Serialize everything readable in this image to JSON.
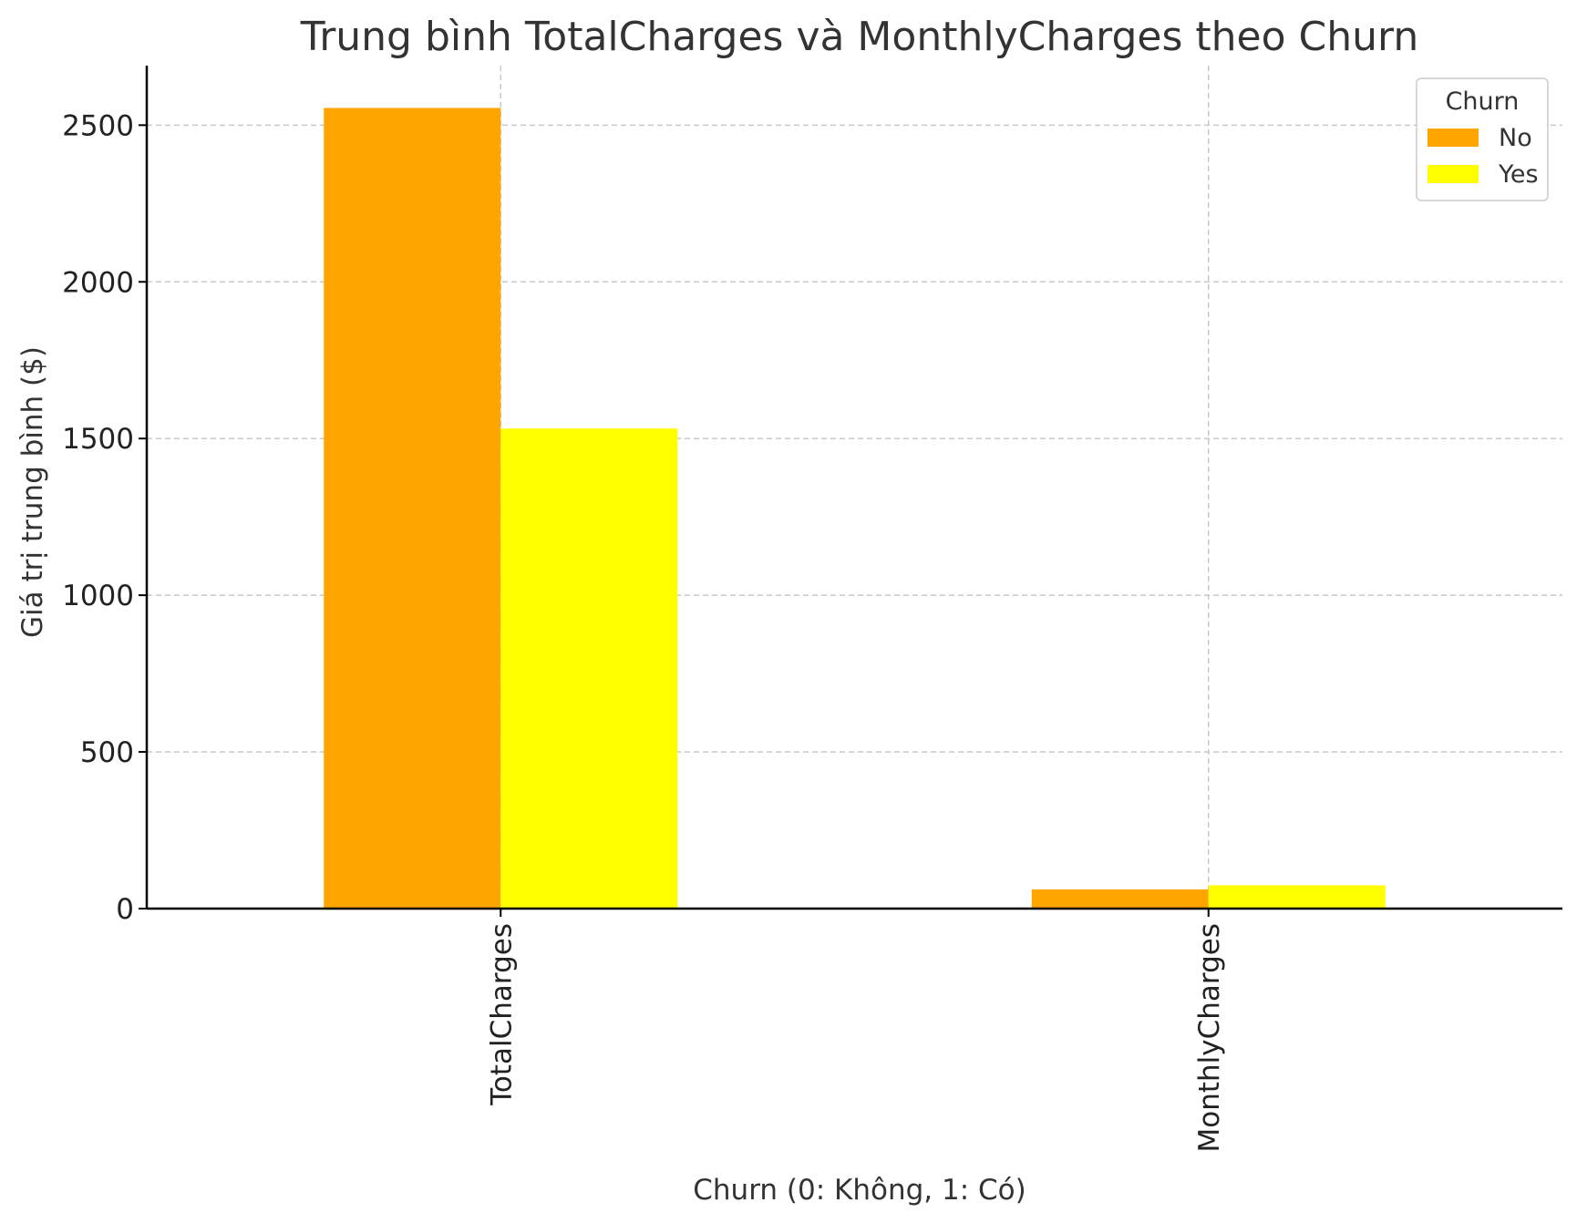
{
  "chart_data": {
    "type": "bar",
    "title": "Trung bình TotalCharges và MonthlyCharges theo Churn",
    "xlabel": "Churn (0: Không, 1: Có)",
    "ylabel": "Giá trị trung bình ($)",
    "categories": [
      "TotalCharges",
      "MonthlyCharges"
    ],
    "series": [
      {
        "name": "No",
        "color": "#FFA500",
        "values": [
          2555,
          61.3
        ]
      },
      {
        "name": "Yes",
        "color": "#FFFF00",
        "values": [
          1532,
          74.4
        ]
      }
    ],
    "ylim": [
      0,
      2690
    ],
    "yticks": [
      0,
      500,
      1000,
      1500,
      2000,
      2500
    ],
    "grid": true,
    "legend": {
      "title": "Churn",
      "placement": "top-right"
    }
  }
}
